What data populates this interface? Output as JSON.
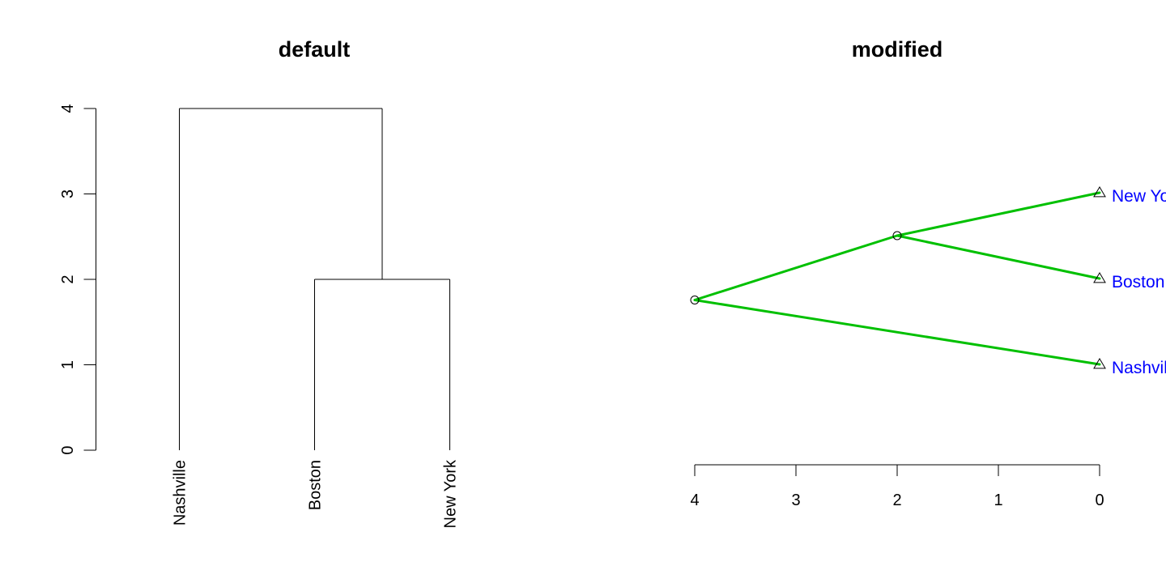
{
  "chart_data": [
    {
      "type": "dendrogram",
      "title": "default",
      "orientation": "vertical",
      "leaves": [
        "Nashville",
        "Boston",
        "New York"
      ],
      "merges": [
        {
          "members": [
            "Boston",
            "New York"
          ],
          "height": 2
        },
        {
          "members": [
            "Nashville",
            "Boston",
            "New York"
          ],
          "height": 4
        }
      ],
      "y_ticks": [
        "0",
        "1",
        "2",
        "3",
        "4"
      ],
      "ylim": [
        0,
        4
      ],
      "line_color": "#000000"
    },
    {
      "type": "dendrogram",
      "title": "modified",
      "orientation": "horizontal",
      "style": "triangle",
      "leaves": [
        "Nashville",
        "Boston",
        "New York"
      ],
      "merges": [
        {
          "members": [
            "Boston",
            "New York"
          ],
          "height": 2
        },
        {
          "members": [
            "Nashville",
            "Boston",
            "New York"
          ],
          "height": 4
        }
      ],
      "x_ticks": [
        "4",
        "3",
        "2",
        "1",
        "0"
      ],
      "xlim": [
        4,
        0
      ],
      "edge_color": "#00c000",
      "label_color": "#0000ff",
      "leaf_marker": "triangle",
      "node_marker": "circle"
    }
  ]
}
